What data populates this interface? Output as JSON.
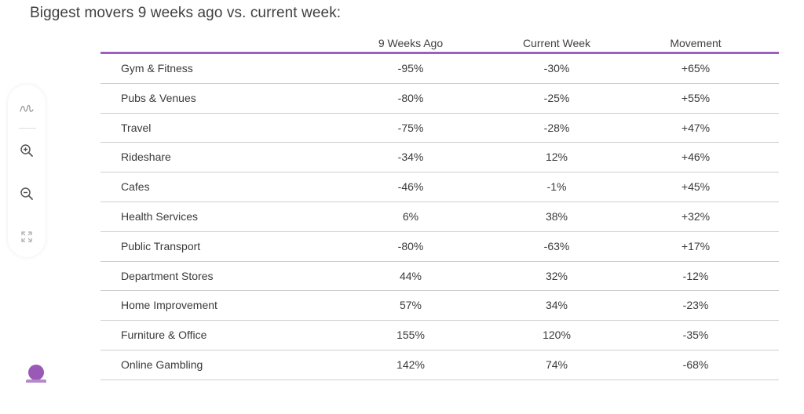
{
  "title": "Biggest movers 9 weeks ago vs. current week:",
  "accent_color": "#9b5fc0",
  "toolbar": {
    "items": [
      {
        "name": "pen-icon",
        "glyph": "✎"
      },
      {
        "name": "zoom-in-icon"
      },
      {
        "name": "zoom-out-icon"
      },
      {
        "name": "fit-screen-icon"
      }
    ]
  },
  "table": {
    "headers": [
      "",
      "9 Weeks Ago",
      "Current Week",
      "Movement"
    ],
    "rows": [
      [
        "Gym & Fitness",
        "-95%",
        "-30%",
        "+65%"
      ],
      [
        "Pubs & Venues",
        "-80%",
        "-25%",
        "+55%"
      ],
      [
        "Travel",
        "-75%",
        "-28%",
        "+47%"
      ],
      [
        "Rideshare",
        "-34%",
        "12%",
        "+46%"
      ],
      [
        "Cafes",
        "-46%",
        "-1%",
        "+45%"
      ],
      [
        "Health Services",
        "6%",
        "38%",
        "+32%"
      ],
      [
        "Public Transport",
        "-80%",
        "-63%",
        "+17%"
      ],
      [
        "Department Stores",
        "44%",
        "32%",
        "-12%"
      ],
      [
        "Home Improvement",
        "57%",
        "34%",
        "-23%"
      ],
      [
        "Furniture & Office",
        "155%",
        "120%",
        "-35%"
      ],
      [
        "Online Gambling",
        "142%",
        "74%",
        "-68%"
      ]
    ]
  }
}
